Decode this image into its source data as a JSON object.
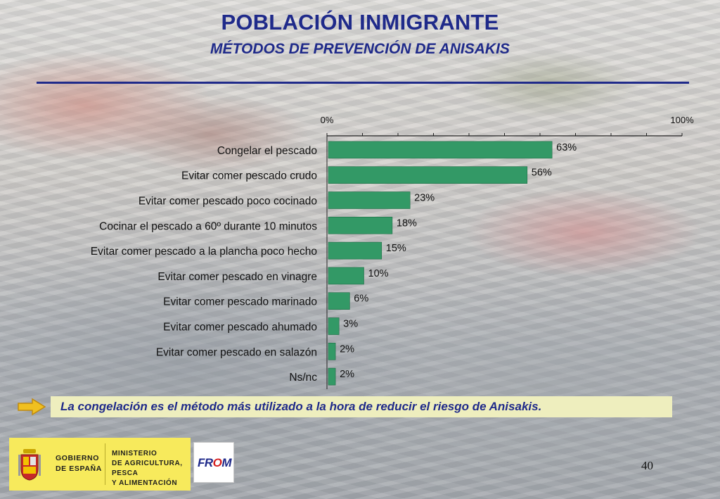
{
  "slide": {
    "title": "POBLACIÓN INMIGRANTE",
    "subtitle": "MÉTODOS DE PREVENCIÓN DE ANISAKIS",
    "conclusion": "La congelación es el método más utilizado a la hora de reducir el riesgo de Anisakis.",
    "page_number": "40"
  },
  "footer": {
    "gobierno_line1": "GOBIERNO",
    "gobierno_line2": "DE ESPAÑA",
    "ministerio_line1": "MINISTERIO",
    "ministerio_line2": "DE AGRICULTURA, PESCA",
    "ministerio_line3": "Y ALIMENTACIÓN",
    "from_logo": "FROM"
  },
  "colors": {
    "title": "#1f2a8a",
    "bar": "#339966",
    "conclusion_bg": "#eeeebe",
    "footer_yellow": "#f7ea5c"
  },
  "icons": [
    "arrow-icon",
    "spain-shield-icon",
    "from-logo"
  ],
  "chart_data": {
    "type": "bar",
    "orientation": "horizontal",
    "categories": [
      "Congelar el pescado",
      "Evitar comer pescado crudo",
      "Evitar comer pescado poco cocinado",
      "Cocinar el pescado a 60º durante 10 minutos",
      "Evitar comer pescado a la plancha poco hecho",
      "Evitar comer pescado en vinagre",
      "Evitar comer pescado marinado",
      "Evitar comer pescado ahumado",
      "Evitar comer pescado en salazón",
      "Ns/nc"
    ],
    "values": [
      63,
      56,
      23,
      18,
      15,
      10,
      6,
      3,
      2,
      2
    ],
    "value_labels": [
      "63%",
      "56%",
      "23%",
      "18%",
      "15%",
      "10%",
      "6%",
      "3%",
      "2%",
      "2%"
    ],
    "axis_min_label": "0%",
    "axis_max_label": "100%",
    "xlim": [
      0,
      100
    ],
    "axis_position": "top",
    "grid": false,
    "legend": "none"
  }
}
